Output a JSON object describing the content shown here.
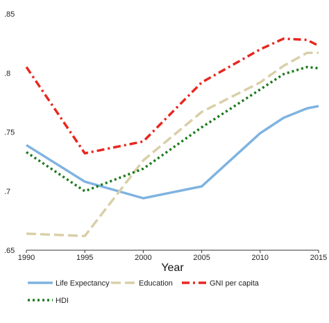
{
  "chart_data": {
    "type": "line",
    "xlabel": "Year",
    "ylabel": "",
    "xlim": [
      1990,
      2015
    ],
    "ylim": [
      0.65,
      0.85
    ],
    "x_ticks": [
      "1990",
      "1995",
      "2000",
      "2005",
      "2010",
      "2015"
    ],
    "y_ticks": [
      ".65",
      ".7",
      ".75",
      ".8",
      ".85"
    ],
    "grid": false,
    "legend_position": "bottom",
    "series": [
      {
        "name": "Life Expectancy",
        "color": "#7fb3e0",
        "style": "solid",
        "x": [
          1990,
          1995,
          2000,
          2005,
          2010,
          2012,
          2014,
          2015
        ],
        "values": [
          0.739,
          0.708,
          0.694,
          0.704,
          0.749,
          0.762,
          0.77,
          0.772
        ]
      },
      {
        "name": "Education",
        "color": "#d9cfa8",
        "style": "dash",
        "x": [
          1990,
          1995,
          2000,
          2005,
          2010,
          2012,
          2014,
          2015
        ],
        "values": [
          0.664,
          0.662,
          0.726,
          0.767,
          0.792,
          0.806,
          0.817,
          0.817
        ]
      },
      {
        "name": "GNI per capita",
        "color": "#e8271f",
        "style": "dashdot",
        "x": [
          1990,
          1995,
          2000,
          2005,
          2010,
          2012,
          2014,
          2015
        ],
        "values": [
          0.805,
          0.732,
          0.742,
          0.792,
          0.82,
          0.829,
          0.828,
          0.823
        ]
      },
      {
        "name": "HDI",
        "color": "#1a7a1a",
        "style": "dot",
        "x": [
          1990,
          1995,
          2000,
          2005,
          2010,
          2012,
          2014,
          2015
        ],
        "values": [
          0.733,
          0.7,
          0.719,
          0.754,
          0.786,
          0.799,
          0.805,
          0.804
        ]
      }
    ]
  }
}
